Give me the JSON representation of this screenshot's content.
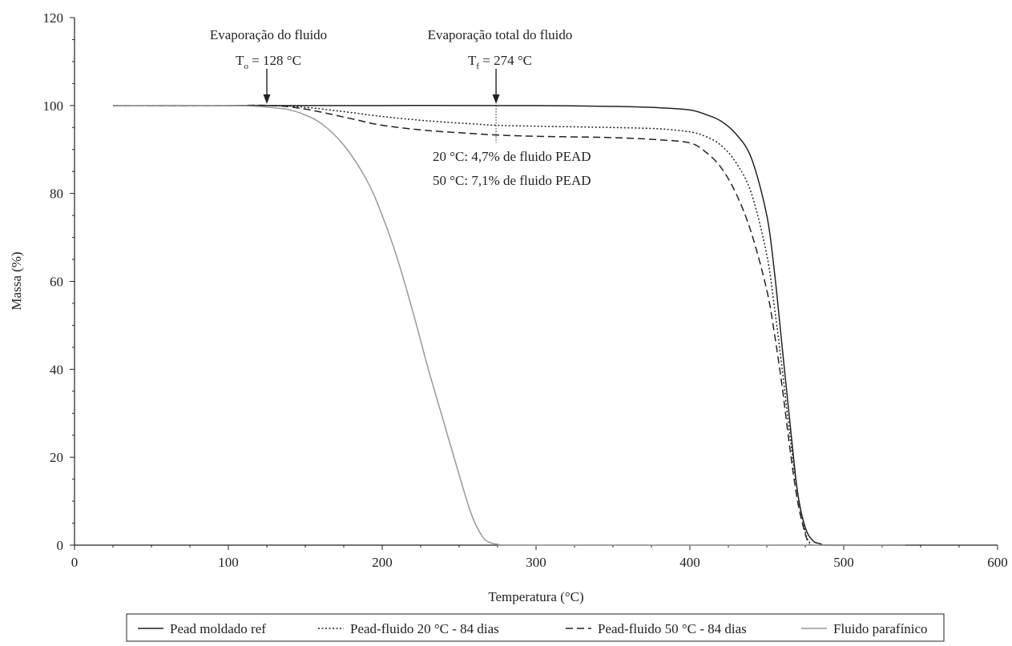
{
  "chart_data": {
    "type": "line",
    "title": "",
    "xlabel": "Temperatura (°C)",
    "ylabel": "Massa (%)",
    "xlim": [
      0,
      600
    ],
    "ylim": [
      0,
      120
    ],
    "xticks": [
      0,
      100,
      200,
      300,
      400,
      500,
      600
    ],
    "yticks": [
      0,
      20,
      40,
      60,
      80,
      100,
      120
    ],
    "grid": false,
    "legend_position": "bottom",
    "series": [
      {
        "name": "Pead moldado ref",
        "color": "#222222",
        "dash": "solid",
        "x": [
          25,
          100,
          200,
          300,
          350,
          380,
          400,
          410,
          420,
          430,
          440,
          450,
          455,
          460,
          465,
          470,
          475,
          480,
          485,
          490,
          540
        ],
        "y": [
          100,
          100,
          100,
          100,
          99.8,
          99.5,
          99,
          98,
          96.5,
          93.5,
          88,
          75,
          62,
          45,
          28,
          12,
          4,
          1,
          0.3,
          0,
          0
        ]
      },
      {
        "name": "Pead-fluido 20 °C - 84 dias",
        "color": "#222222",
        "dash": "dotted",
        "x": [
          25,
          100,
          128,
          150,
          180,
          200,
          230,
          260,
          274,
          300,
          350,
          380,
          400,
          410,
          420,
          430,
          440,
          450,
          455,
          460,
          465,
          470,
          475,
          478,
          480
        ],
        "y": [
          100,
          100,
          100,
          99.6,
          98.4,
          97.5,
          96.5,
          95.8,
          95.5,
          95.3,
          95,
          94.7,
          94,
          93,
          91,
          87,
          80,
          66,
          54,
          40,
          25,
          12,
          3,
          0.5,
          0
        ]
      },
      {
        "name": "Pead-fluido 50 °C - 84 dias",
        "color": "#222222",
        "dash": "dashed",
        "x": [
          25,
          100,
          128,
          150,
          180,
          200,
          230,
          260,
          274,
          300,
          350,
          380,
          400,
          410,
          420,
          430,
          440,
          450,
          455,
          460,
          465,
          470,
          475,
          478
        ],
        "y": [
          100,
          100,
          100,
          99.2,
          97,
          95.5,
          94.3,
          93.6,
          93.3,
          93,
          92.7,
          92.2,
          91.5,
          89.5,
          86,
          80,
          71,
          58,
          48,
          36,
          22,
          10,
          2.5,
          0
        ]
      },
      {
        "name": "Fluido parafínico",
        "color": "#999999",
        "dash": "solid",
        "x": [
          25,
          100,
          130,
          145,
          160,
          175,
          190,
          200,
          210,
          220,
          230,
          240,
          250,
          258,
          265,
          270,
          275,
          280,
          300,
          540
        ],
        "y": [
          100,
          100,
          99.5,
          98.5,
          96,
          91,
          83,
          75,
          65,
          53,
          40,
          28,
          16,
          7,
          2,
          0.6,
          0.2,
          0,
          0,
          0
        ]
      }
    ],
    "annotations": [
      {
        "line1": "Evaporação do fluido",
        "line2_main": "T",
        "line2_sub": "o",
        "line2_rest": " = 128 °C",
        "x": 125,
        "y": 100
      },
      {
        "line1": "Evaporação total do fluido",
        "line2_main": "T",
        "line2_sub": "f",
        "line2_rest": " = 274 °C",
        "x": 274,
        "y": 100
      }
    ],
    "mass_loss_notes": [
      "20 °C: 4,7% de fluido PEAD",
      "50 °C: 7,1% de fluido PEAD"
    ],
    "marker_line": {
      "x": 274,
      "y_top": 100,
      "y_bottom": 93
    }
  }
}
